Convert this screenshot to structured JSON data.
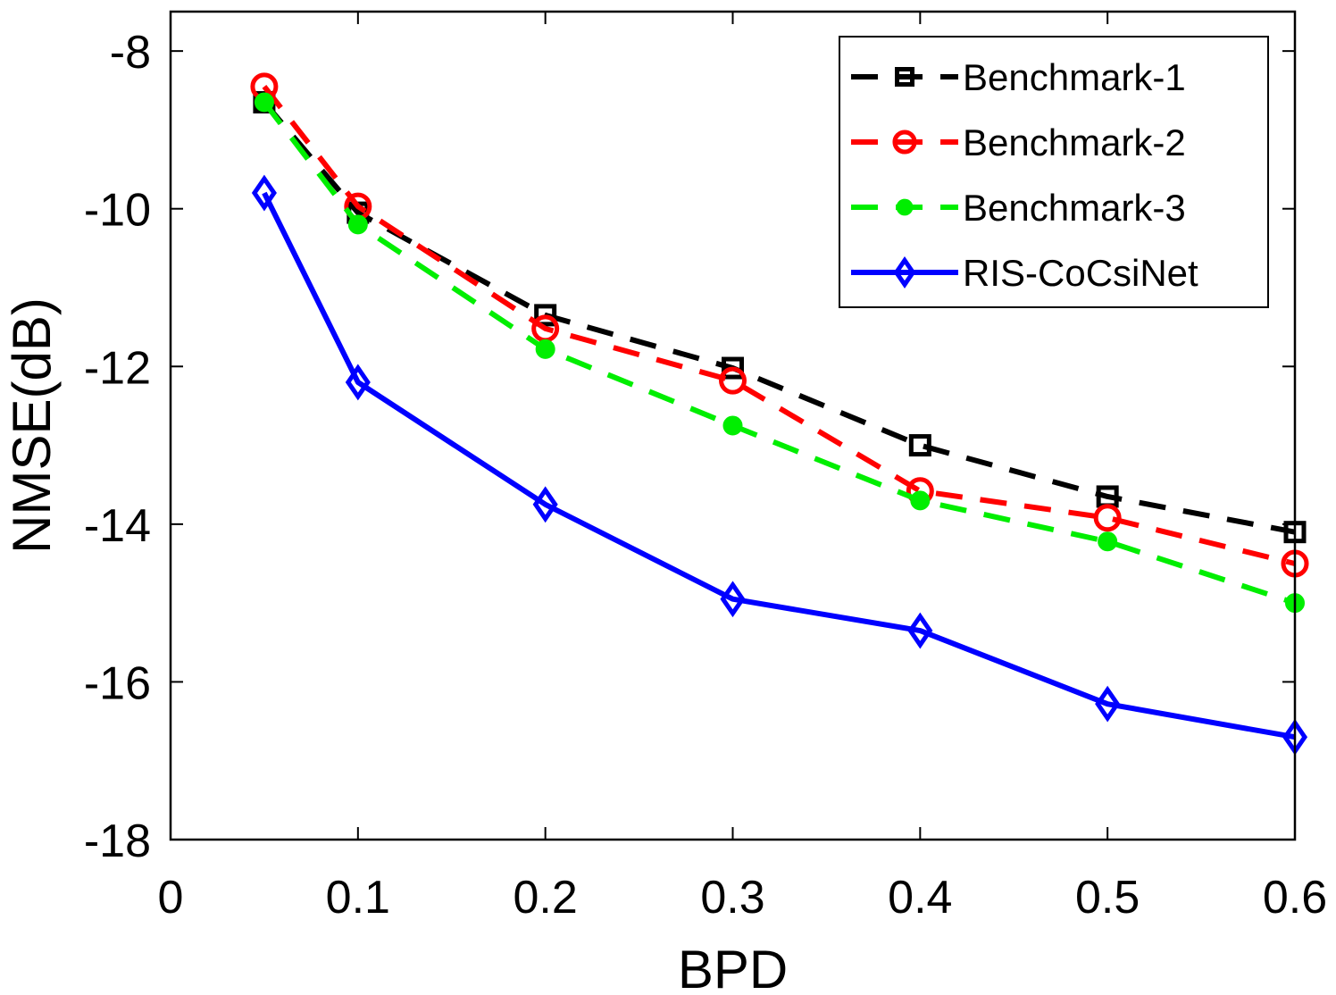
{
  "chart_data": {
    "type": "line",
    "title": "",
    "xlabel": "BPD",
    "ylabel": "NMSE(dB)",
    "xlim": [
      0,
      0.6
    ],
    "ylim": [
      -18,
      -7.5
    ],
    "xticks": [
      0,
      0.1,
      0.2,
      0.3,
      0.4,
      0.5,
      0.6
    ],
    "xtick_labels": [
      "0",
      "0.1",
      "0.2",
      "0.3",
      "0.4",
      "0.5",
      "0.6"
    ],
    "yticks": [
      -18,
      -16,
      -14,
      -12,
      -10,
      -8
    ],
    "ytick_labels": [
      "-18",
      "-16",
      "-14",
      "-12",
      "-10",
      "-8"
    ],
    "grid": false,
    "legend_position": "top-right",
    "x": [
      0.05,
      0.1,
      0.2,
      0.3,
      0.4,
      0.5,
      0.6
    ],
    "series": [
      {
        "name": "Benchmark-1",
        "color": "#000000",
        "dash": "dashed",
        "marker": "square",
        "values": [
          -8.65,
          -10.05,
          -11.35,
          -12.02,
          -13.0,
          -13.65,
          -14.1
        ]
      },
      {
        "name": "Benchmark-2",
        "color": "#ff0000",
        "dash": "dashed",
        "marker": "circle",
        "values": [
          -8.45,
          -9.97,
          -11.52,
          -12.18,
          -13.58,
          -13.92,
          -14.5
        ]
      },
      {
        "name": "Benchmark-3",
        "color": "#00ee00",
        "dash": "dashed",
        "marker": "dot",
        "values": [
          -8.65,
          -10.2,
          -11.78,
          -12.75,
          -13.7,
          -14.22,
          -15.0
        ]
      },
      {
        "name": "RIS-CoCsiNet",
        "color": "#0000ff",
        "dash": "solid",
        "marker": "diamond",
        "values": [
          -9.8,
          -12.2,
          -13.75,
          -14.95,
          -15.35,
          -16.28,
          -16.7
        ]
      }
    ]
  }
}
